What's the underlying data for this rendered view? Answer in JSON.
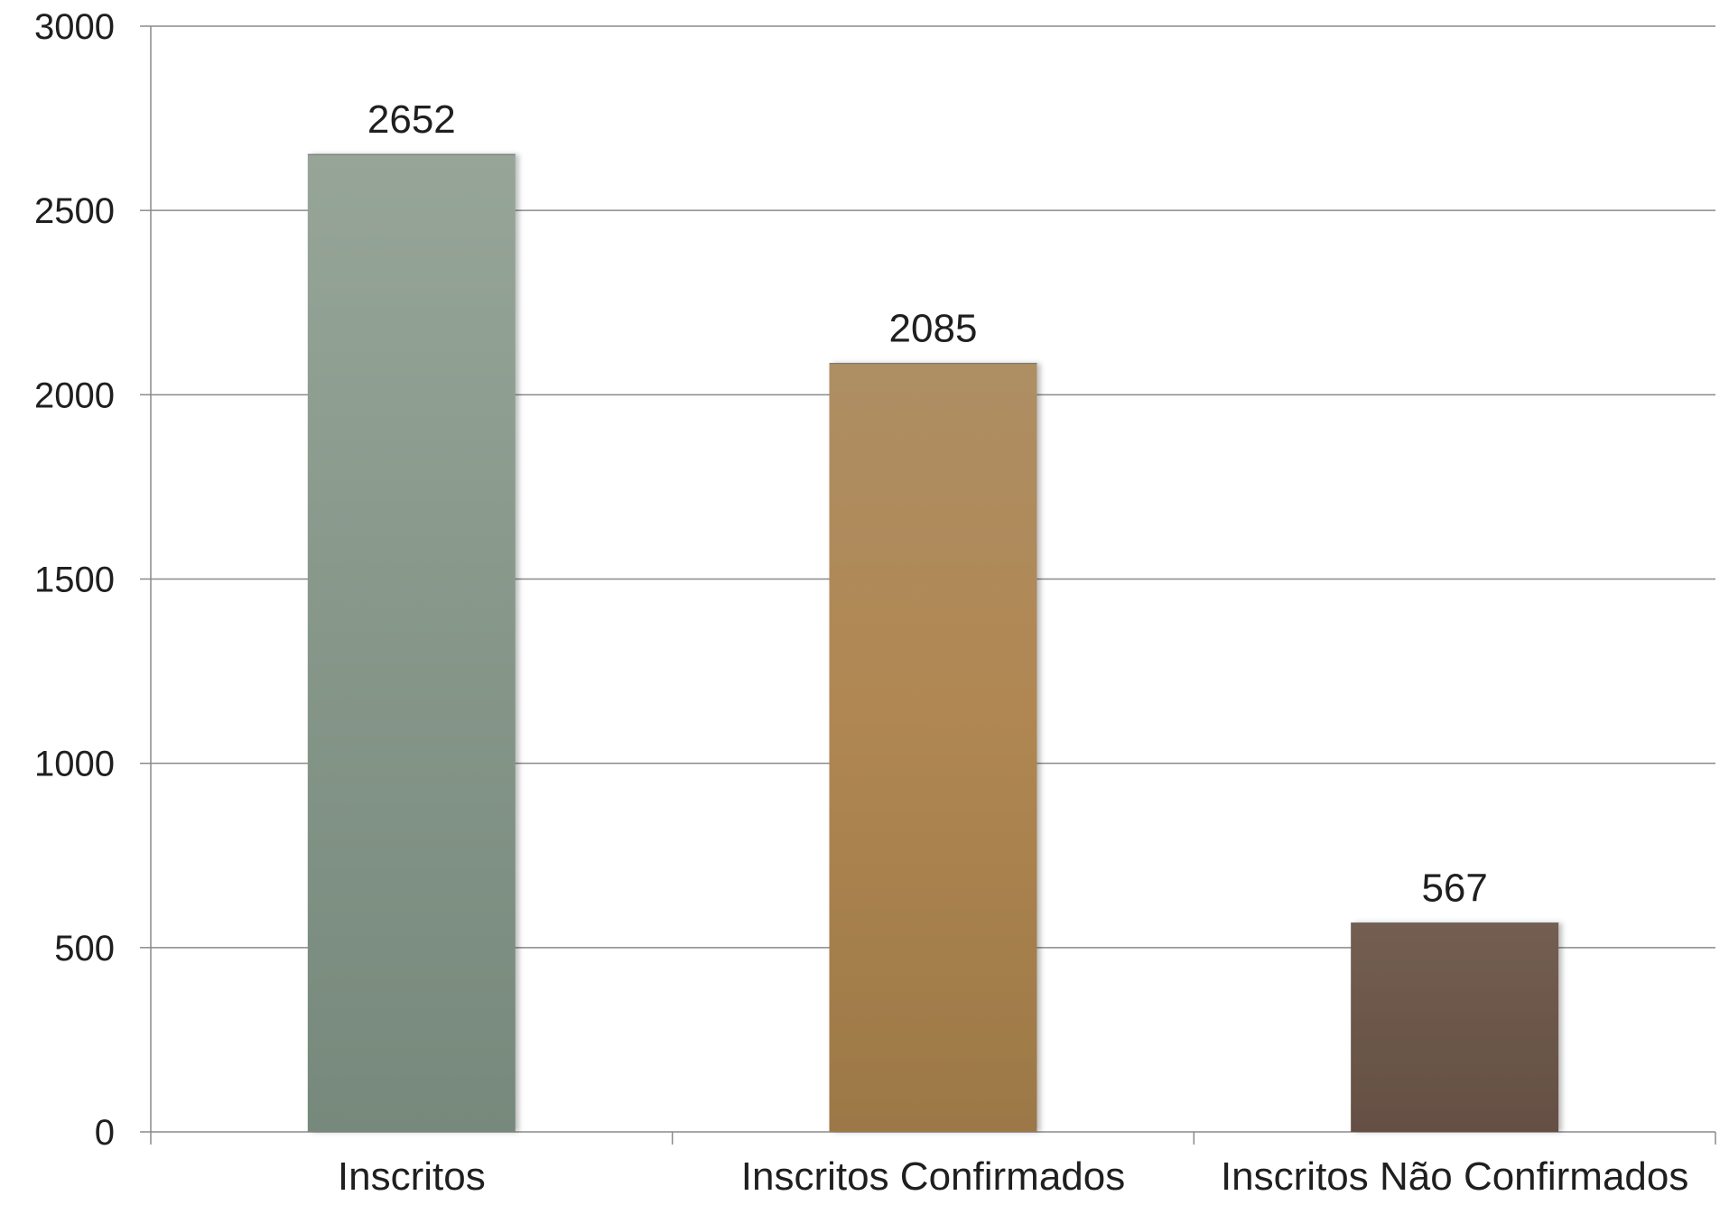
{
  "chart_data": {
    "type": "bar",
    "categories": [
      "Inscritos",
      "Inscritos Confirmados",
      "Inscritos Não Confirmados"
    ],
    "values": [
      2652,
      2085,
      567
    ],
    "data_labels": [
      "2652",
      "2085",
      "567"
    ],
    "bar_colors": [
      "#889c8e",
      "#ad8751",
      "#6c5548"
    ],
    "title": "",
    "xlabel": "",
    "ylabel": "",
    "ylim": [
      0,
      3000
    ],
    "yticks": [
      0,
      500,
      1000,
      1500,
      2000,
      2500,
      3000
    ],
    "ytick_labels": [
      "0",
      "500",
      "1000",
      "1500",
      "2000",
      "2500",
      "3000"
    ],
    "grid": true,
    "legend": "none"
  }
}
